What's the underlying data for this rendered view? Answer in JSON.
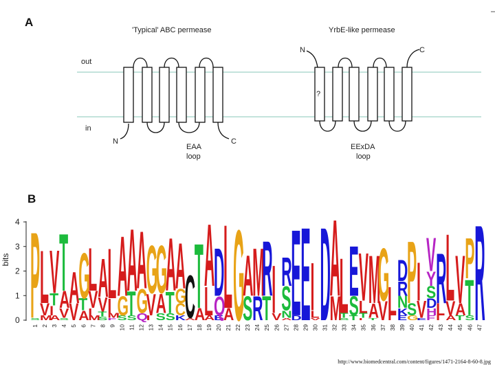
{
  "panel_a": {
    "letter": "A",
    "left_title": "'Typical' ABC permease",
    "right_title": "YrbE-like permease",
    "out_label": "out",
    "in_label": "in",
    "left_n": "N",
    "left_c": "C",
    "right_n": "N",
    "right_c": "C",
    "question": "?",
    "left_loop_1": "EAA",
    "left_loop_2": "loop",
    "right_loop_1": "EExDA",
    "right_loop_2": "loop"
  },
  "panel_b": {
    "letter": "B",
    "ylabel": "bits",
    "yticks": [
      "0",
      "1",
      "2",
      "3",
      "4"
    ]
  },
  "colors": {
    "membrane": "#9fd2c8",
    "orange": "#e8a317",
    "red": "#d51c1c",
    "green": "#1cbb3c",
    "blue": "#1717d8",
    "purple": "#b624c4",
    "black": "#111111"
  },
  "chart_data": {
    "type": "sequence-logo",
    "ylabel": "bits",
    "ylim": [
      0,
      4
    ],
    "positions": [
      {
        "pos": "1",
        "letters": [
          [
            "P",
            3.6,
            "orange"
          ],
          [
            "S",
            0.1,
            "green"
          ]
        ]
      },
      {
        "pos": "2",
        "letters": [
          [
            "L",
            2.2,
            "red"
          ],
          [
            "V",
            0.5,
            "red"
          ],
          [
            "M",
            0.2,
            "red"
          ]
        ]
      },
      {
        "pos": "3",
        "letters": [
          [
            "V",
            1.8,
            "red"
          ],
          [
            "T",
            0.5,
            "green"
          ],
          [
            "I",
            0.4,
            "red"
          ],
          [
            "A",
            0.2,
            "red"
          ]
        ]
      },
      {
        "pos": "4",
        "letters": [
          [
            "T",
            2.4,
            "green"
          ],
          [
            "A",
            0.7,
            "red"
          ],
          [
            "V",
            0.4,
            "red"
          ],
          [
            "S",
            0.1,
            "green"
          ]
        ]
      },
      {
        "pos": "5",
        "letters": [
          [
            "A",
            1.3,
            "red"
          ],
          [
            "V",
            0.7,
            "red"
          ]
        ]
      },
      {
        "pos": "6",
        "letters": [
          [
            "G",
            1.9,
            "orange"
          ],
          [
            "T",
            0.5,
            "green"
          ],
          [
            "A",
            0.4,
            "red"
          ]
        ]
      },
      {
        "pos": "7",
        "letters": [
          [
            "L",
            1.8,
            "red"
          ],
          [
            "V",
            0.7,
            "red"
          ],
          [
            "I",
            0.3,
            "red"
          ],
          [
            "M",
            0.2,
            "red"
          ]
        ]
      },
      {
        "pos": "8",
        "letters": [
          [
            "A",
            1.6,
            "red"
          ],
          [
            "V",
            0.6,
            "red"
          ],
          [
            "T",
            0.2,
            "green"
          ],
          [
            "S",
            0.15,
            "green"
          ]
        ]
      },
      {
        "pos": "9",
        "letters": [
          [
            "L",
            2.1,
            "red"
          ],
          [
            "I",
            0.6,
            "red"
          ],
          [
            "M",
            0.2,
            "red"
          ],
          [
            "F",
            0.1,
            "purple"
          ]
        ]
      },
      {
        "pos": "10",
        "letters": [
          [
            "A",
            2.5,
            "red"
          ],
          [
            "G",
            0.8,
            "orange"
          ],
          [
            "S",
            0.2,
            "green"
          ]
        ]
      },
      {
        "pos": "11",
        "letters": [
          [
            "A",
            2.6,
            "red"
          ],
          [
            "T",
            1.0,
            "green"
          ],
          [
            "S",
            0.2,
            "green"
          ]
        ]
      },
      {
        "pos": "12",
        "letters": [
          [
            "A",
            2.4,
            "red"
          ],
          [
            "G",
            1.0,
            "orange"
          ],
          [
            "Q",
            0.3,
            "purple"
          ]
        ]
      },
      {
        "pos": "13",
        "letters": [
          [
            "G",
            2.0,
            "orange"
          ],
          [
            "V",
            0.9,
            "red"
          ],
          [
            "I",
            0.2,
            "red"
          ]
        ]
      },
      {
        "pos": "14",
        "letters": [
          [
            "G",
            2.0,
            "orange"
          ],
          [
            "A",
            0.8,
            "red"
          ],
          [
            "S",
            0.3,
            "green"
          ]
        ]
      },
      {
        "pos": "15",
        "letters": [
          [
            "A",
            2.2,
            "red"
          ],
          [
            "T",
            0.9,
            "green"
          ],
          [
            "S",
            0.3,
            "green"
          ]
        ]
      },
      {
        "pos": "16",
        "letters": [
          [
            "A",
            1.9,
            "red"
          ],
          [
            "G",
            0.6,
            "orange"
          ],
          [
            "C",
            0.5,
            "orange"
          ],
          [
            "K",
            0.2,
            "blue"
          ]
        ]
      },
      {
        "pos": "17",
        "letters": [
          [
            "C",
            1.8,
            "black"
          ],
          [
            "A",
            0.1,
            "red"
          ]
        ]
      },
      {
        "pos": "18",
        "letters": [
          [
            "T",
            2.7,
            "green"
          ],
          [
            "A",
            0.5,
            "red"
          ]
        ]
      },
      {
        "pos": "19",
        "letters": [
          [
            "A",
            2.6,
            "red"
          ],
          [
            "L",
            1.2,
            "red"
          ],
          [
            "A",
            0.2,
            "red"
          ]
        ]
      },
      {
        "pos": "20",
        "letters": [
          [
            "D",
            2.0,
            "blue"
          ],
          [
            "Q",
            0.8,
            "purple"
          ],
          [
            "E",
            0.2,
            "blue"
          ]
        ]
      },
      {
        "pos": "21",
        "letters": [
          [
            "L",
            3.5,
            "red"
          ],
          [
            "A",
            0.5,
            "red"
          ]
        ]
      },
      {
        "pos": "22",
        "letters": [
          [
            "G",
            3.8,
            "orange"
          ]
        ]
      },
      {
        "pos": "23",
        "letters": [
          [
            "A",
            1.7,
            "red"
          ],
          [
            "S",
            1.0,
            "green"
          ]
        ]
      },
      {
        "pos": "24",
        "letters": [
          [
            "M",
            2.0,
            "red"
          ],
          [
            "R",
            1.0,
            "blue"
          ]
        ]
      },
      {
        "pos": "25",
        "letters": [
          [
            "R",
            2.3,
            "blue"
          ],
          [
            "T",
            1.0,
            "green"
          ]
        ]
      },
      {
        "pos": "26",
        "letters": [
          [
            "I",
            2.0,
            "red"
          ],
          [
            "V",
            0.3,
            "red"
          ]
        ]
      },
      {
        "pos": "27",
        "letters": [
          [
            "R",
            1.2,
            "blue"
          ],
          [
            "S",
            1.0,
            "green"
          ],
          [
            "N",
            0.3,
            "green"
          ],
          [
            "A",
            0.1,
            "red"
          ]
        ]
      },
      {
        "pos": "28",
        "letters": [
          [
            "E",
            3.6,
            "blue"
          ],
          [
            "D",
            0.2,
            "blue"
          ]
        ]
      },
      {
        "pos": "29",
        "letters": [
          [
            "E",
            3.9,
            "blue"
          ]
        ]
      },
      {
        "pos": "30",
        "letters": [
          [
            "I",
            2.0,
            "red"
          ],
          [
            "L",
            0.3,
            "red"
          ],
          [
            "V",
            0.1,
            "red"
          ]
        ]
      },
      {
        "pos": "31",
        "letters": [
          [
            "D",
            3.9,
            "blue"
          ]
        ]
      },
      {
        "pos": "32",
        "letters": [
          [
            "A",
            3.2,
            "red"
          ],
          [
            "M",
            1.0,
            "red"
          ]
        ]
      },
      {
        "pos": "33",
        "letters": [
          [
            "L",
            2.3,
            "red"
          ],
          [
            "T",
            0.2,
            "green"
          ],
          [
            "S",
            0.1,
            "green"
          ]
        ]
      },
      {
        "pos": "34",
        "letters": [
          [
            "E",
            2.1,
            "blue"
          ],
          [
            "S",
            0.8,
            "green"
          ],
          [
            "T",
            0.2,
            "green"
          ]
        ]
      },
      {
        "pos": "35",
        "letters": [
          [
            "V",
            2.0,
            "red"
          ],
          [
            "L",
            0.5,
            "red"
          ],
          [
            "T",
            0.2,
            "green"
          ],
          [
            "I",
            0.1,
            "red"
          ]
        ]
      },
      {
        "pos": "36",
        "letters": [
          [
            "M",
            2.0,
            "red"
          ],
          [
            "A",
            0.6,
            "red"
          ],
          [
            "T",
            0.1,
            "green"
          ]
        ]
      },
      {
        "pos": "37",
        "letters": [
          [
            "G",
            2.2,
            "orange"
          ],
          [
            "V",
            0.8,
            "red"
          ]
        ]
      },
      {
        "pos": "38",
        "letters": [
          [
            "L",
            1.2,
            "red"
          ],
          [
            "I",
            0.2,
            "red"
          ]
        ]
      },
      {
        "pos": "39",
        "letters": [
          [
            "D",
            0.9,
            "blue"
          ],
          [
            "R",
            0.6,
            "blue"
          ],
          [
            "N",
            0.5,
            "green"
          ],
          [
            "K",
            0.3,
            "blue"
          ],
          [
            "E",
            0.2,
            "blue"
          ]
        ]
      },
      {
        "pos": "40",
        "letters": [
          [
            "P",
            2.6,
            "orange"
          ],
          [
            "S",
            0.5,
            "green"
          ],
          [
            "G",
            0.2,
            "orange"
          ]
        ]
      },
      {
        "pos": "41",
        "letters": [
          [
            "I",
            1.6,
            "red"
          ],
          [
            "V",
            0.7,
            "red"
          ],
          [
            "E",
            0.1,
            "blue"
          ]
        ]
      },
      {
        "pos": "42",
        "letters": [
          [
            "V",
            1.4,
            "purple"
          ],
          [
            "Y",
            0.6,
            "purple"
          ],
          [
            "S",
            0.5,
            "green"
          ],
          [
            "D",
            0.4,
            "blue"
          ],
          [
            "H",
            0.3,
            "purple"
          ],
          [
            "F",
            0.2,
            "purple"
          ]
        ]
      },
      {
        "pos": "43",
        "letters": [
          [
            "R",
            2.1,
            "blue"
          ],
          [
            "L",
            0.5,
            "red"
          ],
          [
            "I",
            0.2,
            "red"
          ]
        ]
      },
      {
        "pos": "44",
        "letters": [
          [
            "L",
            2.8,
            "red"
          ],
          [
            "V",
            0.6,
            "red"
          ],
          [
            "A",
            0.2,
            "red"
          ]
        ]
      },
      {
        "pos": "45",
        "letters": [
          [
            "V",
            2.0,
            "red"
          ],
          [
            "A",
            0.5,
            "red"
          ],
          [
            "T",
            0.2,
            "green"
          ]
        ]
      },
      {
        "pos": "46",
        "letters": [
          [
            "P",
            1.7,
            "orange"
          ],
          [
            "T",
            1.5,
            "green"
          ],
          [
            "S",
            0.2,
            "green"
          ]
        ]
      },
      {
        "pos": "47",
        "letters": [
          [
            "R",
            4.0,
            "blue"
          ]
        ]
      }
    ]
  },
  "footer": {
    "url": "http://www.biomedcentral.com/content/figures/1471-2164-8-60-8.jpg"
  }
}
